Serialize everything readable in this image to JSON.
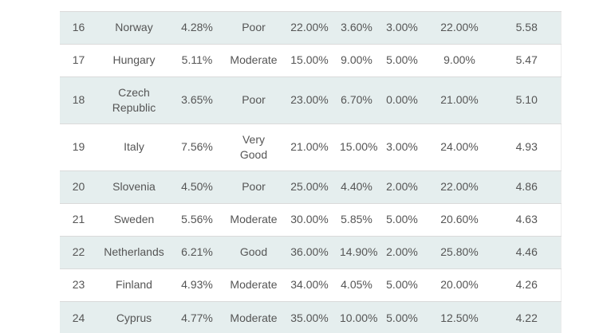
{
  "table": {
    "header_visible": false,
    "stripe_color": "#e5eeee",
    "row_color": "#ffffff",
    "border_color": "#dadada",
    "text_color": "#555555",
    "visible_rows": 9
  },
  "chart_data": {
    "type": "table",
    "header_visible": false,
    "rows": [
      [
        "16",
        "Norway",
        "4.28%",
        "Poor",
        "22.00%",
        "3.60%",
        "3.00%",
        "22.00%",
        "5.58"
      ],
      [
        "17",
        "Hungary",
        "5.11%",
        "Moderate",
        "15.00%",
        "9.00%",
        "5.00%",
        "9.00%",
        "5.47"
      ],
      [
        "18",
        "Czech Republic",
        "3.65%",
        "Poor",
        "23.00%",
        "6.70%",
        "0.00%",
        "21.00%",
        "5.10"
      ],
      [
        "19",
        "Italy",
        "7.56%",
        "Very Good",
        "21.00%",
        "15.00%",
        "3.00%",
        "24.00%",
        "4.93"
      ],
      [
        "20",
        "Slovenia",
        "4.50%",
        "Poor",
        "25.00%",
        "4.40%",
        "2.00%",
        "22.00%",
        "4.86"
      ],
      [
        "21",
        "Sweden",
        "5.56%",
        "Moderate",
        "30.00%",
        "5.85%",
        "5.00%",
        "20.60%",
        "4.63"
      ],
      [
        "22",
        "Netherlands",
        "6.21%",
        "Good",
        "36.00%",
        "14.90%",
        "2.00%",
        "25.80%",
        "4.46"
      ],
      [
        "23",
        "Finland",
        "4.93%",
        "Moderate",
        "34.00%",
        "4.05%",
        "5.00%",
        "20.00%",
        "4.26"
      ],
      [
        "24",
        "Cyprus",
        "4.77%",
        "Moderate",
        "35.00%",
        "10.00%",
        "5.00%",
        "12.50%",
        "4.22"
      ]
    ]
  }
}
